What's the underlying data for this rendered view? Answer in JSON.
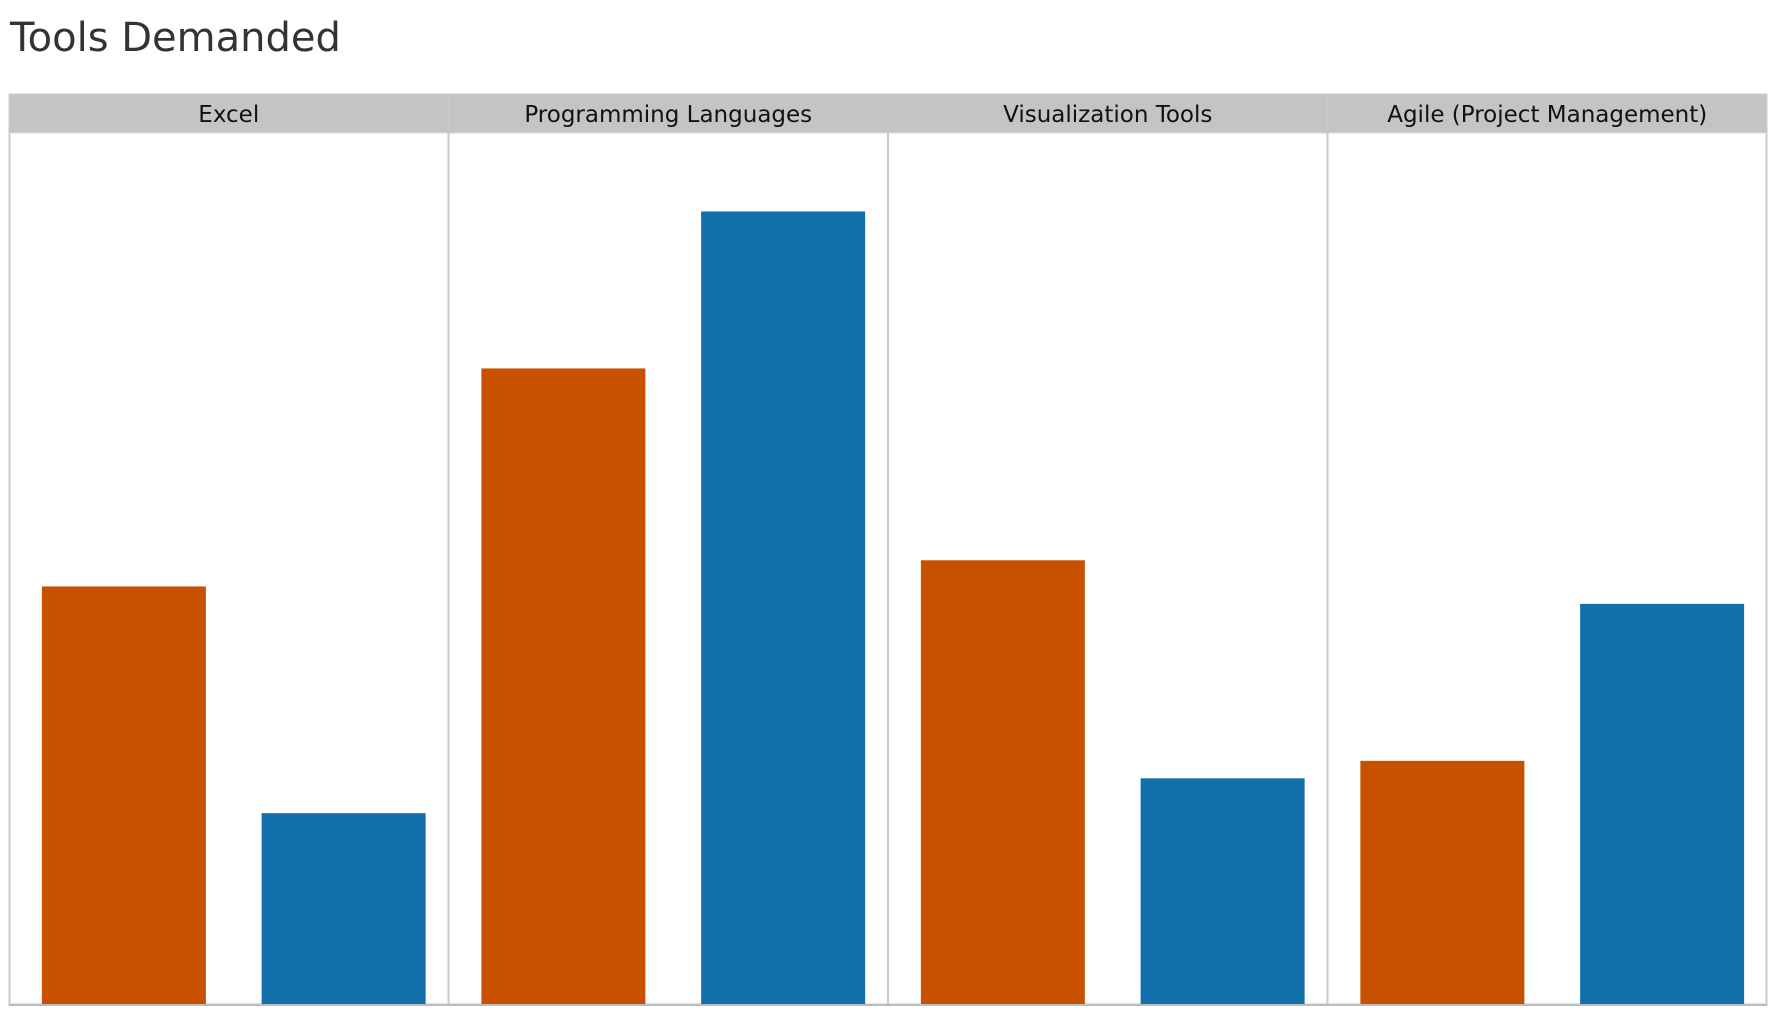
{
  "chart_data": {
    "type": "bar",
    "title": "Tools Demanded",
    "panels": [
      "Excel",
      "Programming Languages",
      "Visualization Tools",
      "Agile (Project Management)"
    ],
    "series": [
      {
        "values": [
          48,
          73,
          51,
          28
        ]
      },
      {
        "values": [
          22,
          91,
          26,
          46
        ]
      }
    ],
    "ylim": [
      0,
      100
    ],
    "grid": false,
    "legend": "none",
    "colors": {
      "series_1": "#c75100",
      "series_2": "#1170aa",
      "header_bg": "#c4c4c4",
      "panel_border": "#c8c8c8"
    }
  }
}
